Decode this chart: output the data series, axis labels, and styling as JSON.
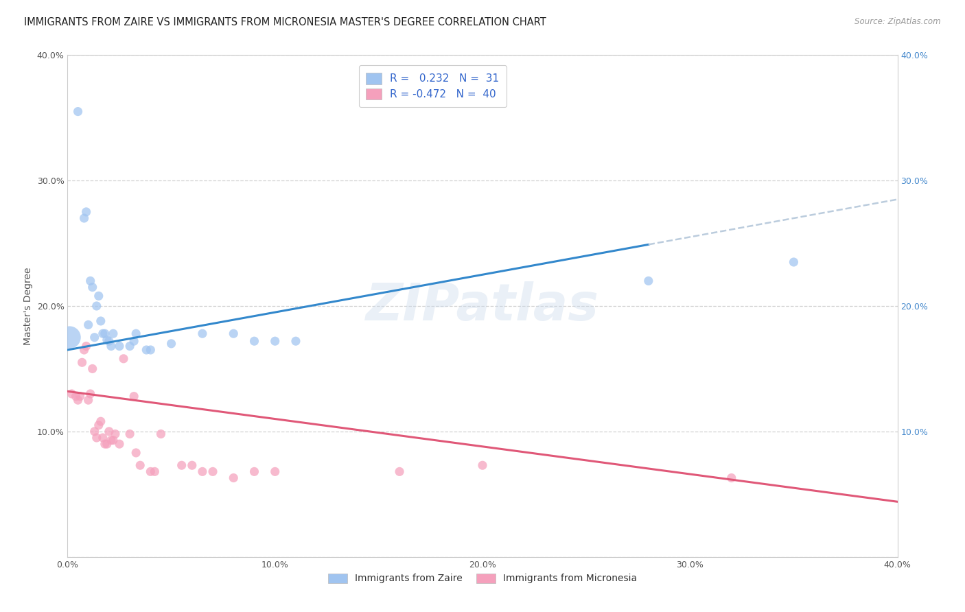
{
  "title": "IMMIGRANTS FROM ZAIRE VS IMMIGRANTS FROM MICRONESIA MASTER'S DEGREE CORRELATION CHART",
  "source": "Source: ZipAtlas.com",
  "ylabel": "Master's Degree",
  "xlim": [
    0.0,
    0.4
  ],
  "ylim": [
    0.0,
    0.4
  ],
  "xticks": [
    0.0,
    0.1,
    0.2,
    0.3,
    0.4
  ],
  "yticks": [
    0.0,
    0.1,
    0.2,
    0.3,
    0.4
  ],
  "xtick_labels": [
    "0.0%",
    "10.0%",
    "20.0%",
    "30.0%",
    "40.0%"
  ],
  "ytick_labels_left": [
    "",
    "10.0%",
    "20.0%",
    "30.0%",
    "40.0%"
  ],
  "ytick_labels_right": [
    "",
    "10.0%",
    "20.0%",
    "30.0%",
    "40.0%"
  ],
  "zaire_color": "#A0C4F0",
  "micronesia_color": "#F5A0BC",
  "zaire_line_color": "#3388CC",
  "micronesia_line_color": "#E05878",
  "dash_color": "#BBCCDD",
  "zaire_R": "0.232",
  "zaire_N": "31",
  "micronesia_R": "-0.472",
  "micronesia_N": "40",
  "legend_label_zaire": "Immigrants from Zaire",
  "legend_label_micronesia": "Immigrants from Micronesia",
  "watermark": "ZIPatlas",
  "zaire_x": [
    0.001,
    0.005,
    0.008,
    0.009,
    0.01,
    0.011,
    0.012,
    0.013,
    0.014,
    0.015,
    0.016,
    0.017,
    0.018,
    0.019,
    0.02,
    0.021,
    0.022,
    0.025,
    0.03,
    0.032,
    0.033,
    0.038,
    0.04,
    0.05,
    0.065,
    0.08,
    0.09,
    0.1,
    0.11,
    0.28,
    0.35
  ],
  "zaire_y": [
    0.175,
    0.355,
    0.27,
    0.275,
    0.185,
    0.22,
    0.215,
    0.175,
    0.2,
    0.208,
    0.188,
    0.178,
    0.178,
    0.173,
    0.172,
    0.168,
    0.178,
    0.168,
    0.168,
    0.172,
    0.178,
    0.165,
    0.165,
    0.17,
    0.178,
    0.178,
    0.172,
    0.172,
    0.172,
    0.22,
    0.235
  ],
  "zaire_sizes": [
    550,
    90,
    90,
    90,
    90,
    90,
    90,
    90,
    90,
    90,
    90,
    90,
    90,
    90,
    90,
    90,
    90,
    90,
    90,
    90,
    90,
    90,
    90,
    90,
    90,
    90,
    90,
    90,
    90,
    90,
    90
  ],
  "micronesia_x": [
    0.002,
    0.004,
    0.005,
    0.006,
    0.007,
    0.008,
    0.009,
    0.01,
    0.011,
    0.012,
    0.013,
    0.014,
    0.015,
    0.016,
    0.017,
    0.018,
    0.019,
    0.02,
    0.021,
    0.022,
    0.023,
    0.025,
    0.027,
    0.03,
    0.032,
    0.033,
    0.035,
    0.04,
    0.042,
    0.045,
    0.055,
    0.06,
    0.065,
    0.07,
    0.08,
    0.09,
    0.1,
    0.16,
    0.2,
    0.32
  ],
  "micronesia_y": [
    0.13,
    0.128,
    0.125,
    0.128,
    0.155,
    0.165,
    0.168,
    0.125,
    0.13,
    0.15,
    0.1,
    0.095,
    0.105,
    0.108,
    0.095,
    0.09,
    0.09,
    0.1,
    0.093,
    0.093,
    0.098,
    0.09,
    0.158,
    0.098,
    0.128,
    0.083,
    0.073,
    0.068,
    0.068,
    0.098,
    0.073,
    0.073,
    0.068,
    0.068,
    0.063,
    0.068,
    0.068,
    0.068,
    0.073,
    0.063
  ],
  "micronesia_sizes": [
    90,
    90,
    90,
    90,
    90,
    90,
    90,
    90,
    90,
    90,
    90,
    90,
    90,
    90,
    90,
    90,
    90,
    90,
    90,
    90,
    90,
    90,
    90,
    90,
    90,
    90,
    90,
    90,
    90,
    90,
    90,
    90,
    90,
    90,
    90,
    90,
    90,
    90,
    90,
    90
  ],
  "background_color": "#FFFFFF",
  "grid_color": "#CCCCCC",
  "right_tick_color": "#4488CC",
  "title_color": "#222222",
  "source_color": "#999999",
  "axis_label_color": "#555555",
  "tick_color_left": "#555555",
  "legend_text_color": "#333333",
  "r_value_color": "#3366CC",
  "zaire_intercept": 0.165,
  "zaire_slope": 0.3,
  "micronesia_intercept": 0.132,
  "micronesia_slope": -0.22
}
